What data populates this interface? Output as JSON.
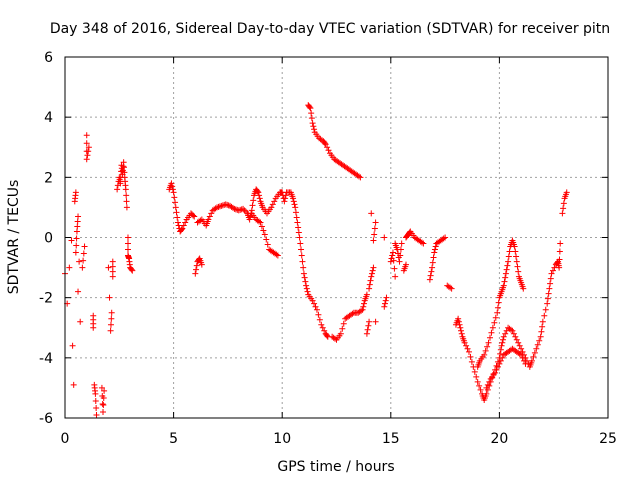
{
  "chart_data": {
    "type": "scatter",
    "title": "Day 348 of 2016, Sidereal Day-to-day VTEC variation (SDTVAR) for receiver pitn",
    "xlabel": "GPS time / hours",
    "ylabel": "SDTVAR / TECUs",
    "xlim": [
      0,
      25
    ],
    "ylim": [
      -6,
      6
    ],
    "x_ticks": [
      "0",
      "5",
      "10",
      "15",
      "20",
      "25"
    ],
    "y_ticks": [
      "-6",
      "-4",
      "-2",
      "0",
      "2",
      "4",
      "6"
    ],
    "grid": true,
    "marker": "+",
    "colors": {
      "marker": "#ff0000",
      "axis": "#000000",
      "grid": "#a0a0a0"
    },
    "series": [
      {
        "name": "s1",
        "points": [
          [
            0.0,
            -1.2
          ],
          [
            0.1,
            -2.2
          ],
          [
            0.2,
            -1.0
          ],
          [
            0.3,
            -0.1
          ],
          [
            0.35,
            -3.6
          ],
          [
            0.4,
            -4.9
          ],
          [
            0.45,
            1.2
          ],
          [
            0.5,
            1.5
          ],
          [
            0.5,
            -0.5
          ],
          [
            0.55,
            0.2
          ],
          [
            0.6,
            0.7
          ],
          [
            0.6,
            -1.8
          ],
          [
            0.65,
            -0.8
          ],
          [
            0.7,
            -2.8
          ],
          [
            0.8,
            -1.0
          ],
          [
            0.9,
            -0.3
          ]
        ]
      },
      {
        "name": "s2",
        "points": [
          [
            1.0,
            3.4
          ],
          [
            1.0,
            2.6
          ],
          [
            1.1,
            3.0
          ],
          [
            1.3,
            -2.6
          ],
          [
            1.3,
            -3.0
          ],
          [
            1.35,
            -4.9
          ],
          [
            1.4,
            -5.2
          ],
          [
            1.45,
            -5.9
          ]
        ]
      },
      {
        "name": "s3",
        "points": [
          [
            1.7,
            -5.0
          ],
          [
            1.75,
            -5.8
          ],
          [
            1.8,
            -5.1
          ],
          [
            2.0,
            -1.0
          ],
          [
            2.05,
            -2.0
          ],
          [
            2.1,
            -3.1
          ],
          [
            2.15,
            -2.5
          ],
          [
            2.2,
            -1.3
          ],
          [
            2.2,
            -0.8
          ]
        ]
      },
      {
        "name": "s4",
        "points": [
          [
            2.4,
            1.6
          ],
          [
            2.5,
            2.0
          ],
          [
            2.55,
            1.8
          ],
          [
            2.6,
            2.4
          ],
          [
            2.65,
            2.1
          ],
          [
            2.7,
            2.5
          ],
          [
            2.75,
            2.0
          ],
          [
            2.8,
            1.6
          ],
          [
            2.85,
            1.0
          ],
          [
            2.9,
            0.0
          ],
          [
            2.9,
            -0.6
          ],
          [
            2.95,
            -0.7
          ],
          [
            3.0,
            -1.0
          ],
          [
            3.1,
            -1.1
          ]
        ]
      },
      {
        "name": "s5",
        "points": [
          [
            4.8,
            1.6
          ],
          [
            4.9,
            1.8
          ],
          [
            5.0,
            1.5
          ],
          [
            5.1,
            1.0
          ],
          [
            5.2,
            0.5
          ],
          [
            5.3,
            0.2
          ],
          [
            5.4,
            0.3
          ],
          [
            5.6,
            0.6
          ],
          [
            5.8,
            0.8
          ],
          [
            5.95,
            0.7
          ],
          [
            6.0,
            -1.2
          ],
          [
            6.1,
            -0.8
          ],
          [
            6.2,
            -0.7
          ],
          [
            6.3,
            -0.9
          ],
          [
            6.1,
            0.5
          ],
          [
            6.3,
            0.6
          ],
          [
            6.5,
            0.4
          ],
          [
            6.6,
            0.6
          ],
          [
            6.8,
            0.9
          ],
          [
            7.0,
            1.0
          ],
          [
            7.2,
            1.05
          ],
          [
            7.4,
            1.1
          ],
          [
            7.6,
            1.05
          ],
          [
            7.8,
            0.95
          ],
          [
            8.0,
            0.9
          ],
          [
            8.2,
            0.95
          ],
          [
            8.4,
            0.8
          ],
          [
            8.5,
            0.6
          ],
          [
            8.6,
            0.9
          ],
          [
            8.7,
            1.4
          ],
          [
            8.8,
            1.6
          ],
          [
            8.9,
            1.5
          ],
          [
            9.0,
            1.2
          ],
          [
            9.1,
            1.0
          ],
          [
            9.3,
            0.8
          ],
          [
            9.5,
            1.0
          ],
          [
            9.7,
            1.3
          ],
          [
            9.9,
            1.5
          ],
          [
            10.0,
            1.5
          ],
          [
            10.1,
            1.2
          ],
          [
            10.2,
            1.5
          ],
          [
            10.4,
            1.5
          ],
          [
            10.5,
            1.3
          ],
          [
            10.6,
            1.0
          ],
          [
            10.7,
            0.5
          ],
          [
            10.8,
            0.0
          ],
          [
            10.9,
            -0.6
          ],
          [
            11.0,
            -1.2
          ],
          [
            11.1,
            -1.6
          ],
          [
            11.2,
            -1.9
          ],
          [
            11.4,
            -2.1
          ],
          [
            11.6,
            -2.4
          ],
          [
            11.8,
            -2.9
          ],
          [
            12.0,
            -3.2
          ],
          [
            12.1,
            -3.3
          ]
        ]
      },
      {
        "name": "s6",
        "points": [
          [
            8.6,
            0.8
          ],
          [
            8.8,
            0.6
          ],
          [
            9.0,
            0.5
          ],
          [
            9.2,
            0.1
          ],
          [
            9.4,
            -0.4
          ],
          [
            9.6,
            -0.5
          ],
          [
            9.8,
            -0.6
          ]
        ]
      },
      {
        "name": "s7",
        "points": [
          [
            11.2,
            4.4
          ],
          [
            11.3,
            4.3
          ],
          [
            11.4,
            3.8
          ],
          [
            11.5,
            3.5
          ],
          [
            11.7,
            3.3
          ],
          [
            11.9,
            3.2
          ],
          [
            12.0,
            3.1
          ],
          [
            12.2,
            2.8
          ],
          [
            12.4,
            2.6
          ],
          [
            12.6,
            2.5
          ],
          [
            12.8,
            2.4
          ],
          [
            13.0,
            2.3
          ],
          [
            13.2,
            2.2
          ],
          [
            13.4,
            2.1
          ],
          [
            13.6,
            2.0
          ]
        ]
      },
      {
        "name": "s8",
        "points": [
          [
            12.3,
            -3.3
          ],
          [
            12.5,
            -3.4
          ],
          [
            12.7,
            -3.2
          ],
          [
            12.9,
            -2.7
          ],
          [
            13.1,
            -2.6
          ],
          [
            13.3,
            -2.5
          ],
          [
            13.5,
            -2.5
          ],
          [
            13.7,
            -2.4
          ],
          [
            13.8,
            -2.1
          ],
          [
            13.9,
            -1.9
          ],
          [
            13.9,
            -3.2
          ],
          [
            14.0,
            -2.8
          ],
          [
            14.0,
            -1.7
          ],
          [
            14.1,
            -1.3
          ],
          [
            14.2,
            -1.0
          ],
          [
            14.3,
            -2.8
          ],
          [
            14.1,
            0.8
          ],
          [
            14.2,
            -0.1
          ],
          [
            14.3,
            0.5
          ]
        ]
      },
      {
        "name": "s9",
        "points": [
          [
            14.7,
            0.0
          ],
          [
            14.7,
            -2.3
          ],
          [
            14.8,
            -2.0
          ],
          [
            15.0,
            -0.8
          ],
          [
            15.1,
            -0.5
          ],
          [
            15.2,
            -1.3
          ],
          [
            15.2,
            -0.2
          ],
          [
            15.3,
            -0.4
          ],
          [
            15.4,
            -0.8
          ],
          [
            15.5,
            -0.2
          ],
          [
            15.6,
            -1.1
          ],
          [
            15.7,
            -0.9
          ],
          [
            15.7,
            0.0
          ],
          [
            15.8,
            0.1
          ],
          [
            15.9,
            0.2
          ],
          [
            16.1,
            0.0
          ],
          [
            16.3,
            -0.1
          ],
          [
            16.5,
            -0.2
          ]
        ]
      },
      {
        "name": "s10",
        "points": [
          [
            16.8,
            -1.4
          ],
          [
            16.9,
            -1.0
          ],
          [
            17.0,
            -0.5
          ],
          [
            17.1,
            -0.2
          ],
          [
            17.3,
            -0.1
          ],
          [
            17.5,
            0.0
          ],
          [
            17.6,
            -1.6
          ],
          [
            17.8,
            -1.7
          ]
        ]
      },
      {
        "name": "s11",
        "points": [
          [
            18.0,
            -2.9
          ],
          [
            18.1,
            -2.7
          ],
          [
            18.2,
            -3.0
          ],
          [
            18.3,
            -3.3
          ],
          [
            18.4,
            -3.5
          ],
          [
            18.6,
            -3.8
          ],
          [
            18.8,
            -4.3
          ],
          [
            19.0,
            -4.8
          ],
          [
            19.2,
            -5.2
          ],
          [
            19.3,
            -5.4
          ],
          [
            19.4,
            -5.2
          ],
          [
            19.6,
            -4.8
          ],
          [
            19.8,
            -4.4
          ],
          [
            20.0,
            -4.0
          ],
          [
            20.1,
            -3.6
          ],
          [
            20.2,
            -3.3
          ],
          [
            20.4,
            -3.0
          ],
          [
            20.6,
            -3.1
          ],
          [
            20.8,
            -3.4
          ],
          [
            21.0,
            -3.7
          ],
          [
            21.2,
            -4.0
          ],
          [
            21.4,
            -4.3
          ],
          [
            21.5,
            -4.1
          ],
          [
            21.7,
            -3.7
          ],
          [
            21.9,
            -3.3
          ],
          [
            22.0,
            -2.8
          ],
          [
            22.2,
            -2.2
          ],
          [
            22.3,
            -1.7
          ],
          [
            22.4,
            -1.2
          ],
          [
            22.6,
            -0.9
          ],
          [
            22.7,
            -0.8
          ],
          [
            22.75,
            -1.0
          ],
          [
            22.8,
            -0.2
          ],
          [
            22.9,
            0.8
          ],
          [
            23.0,
            1.3
          ],
          [
            23.1,
            1.5
          ]
        ]
      },
      {
        "name": "s12",
        "points": [
          [
            19.0,
            -4.3
          ],
          [
            19.1,
            -4.1
          ],
          [
            19.3,
            -3.9
          ],
          [
            19.5,
            -3.5
          ],
          [
            19.7,
            -3.0
          ],
          [
            19.9,
            -2.5
          ],
          [
            20.0,
            -2.0
          ],
          [
            20.1,
            -1.8
          ],
          [
            20.2,
            -1.6
          ],
          [
            20.3,
            -1.2
          ],
          [
            20.4,
            -0.8
          ],
          [
            20.5,
            -0.3
          ],
          [
            20.6,
            -0.1
          ],
          [
            20.7,
            -0.3
          ],
          [
            20.8,
            -0.8
          ],
          [
            20.9,
            -1.3
          ],
          [
            21.0,
            -1.5
          ],
          [
            21.1,
            -1.7
          ]
        ]
      },
      {
        "name": "s13",
        "points": [
          [
            19.4,
            -5.0
          ],
          [
            19.6,
            -4.7
          ],
          [
            19.8,
            -4.5
          ],
          [
            20.0,
            -4.2
          ],
          [
            20.2,
            -3.9
          ],
          [
            20.4,
            -3.8
          ],
          [
            20.6,
            -3.7
          ],
          [
            20.8,
            -3.8
          ],
          [
            21.0,
            -3.9
          ],
          [
            21.2,
            -4.2
          ]
        ]
      }
    ]
  }
}
